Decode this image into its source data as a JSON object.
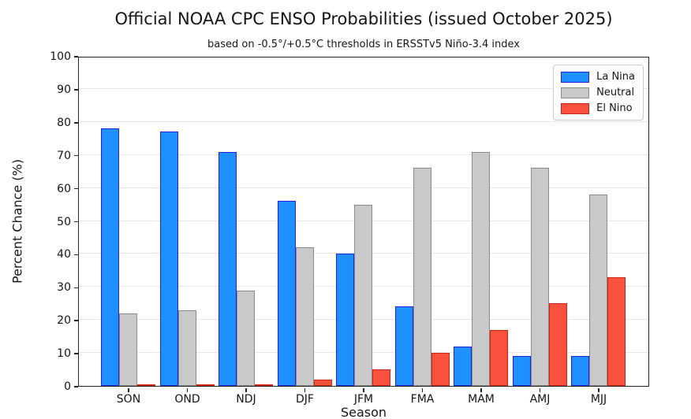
{
  "title": "Official NOAA CPC ENSO Probabilities (issued October 2025)",
  "subtitle": "based on -0.5°/+0.5°C thresholds in ERSSTv5 Niño-3.4 index",
  "chart_data": {
    "type": "bar",
    "title": "Official NOAA CPC ENSO Probabilities (issued October 2025)",
    "subtitle": "based on -0.5°/+0.5°C thresholds in ERSSTv5 Niño-3.4 index",
    "xlabel": "Season",
    "ylabel": "Percent Chance (%)",
    "ylim": [
      0,
      100
    ],
    "ytick_step": 10,
    "grid": "horizontal",
    "legend_position": "upper right",
    "categories": [
      "SON",
      "OND",
      "NDJ",
      "DJF",
      "JFM",
      "FMA",
      "MAM",
      "AMJ",
      "MJJ"
    ],
    "series": [
      {
        "name": "La Nina",
        "fill": "#1E90FF",
        "edge": "#2222DC",
        "values": [
          78,
          77,
          71,
          56,
          40,
          24,
          12,
          9,
          9
        ]
      },
      {
        "name": "Neutral",
        "fill": "#C9C9C9",
        "edge": "#898989",
        "values": [
          22,
          23,
          29,
          42,
          55,
          66,
          71,
          66,
          58
        ]
      },
      {
        "name": "El Nino",
        "fill": "#F9513D",
        "edge": "#CC2414",
        "values": [
          0,
          0,
          0,
          2,
          5,
          10,
          17,
          25,
          33
        ]
      }
    ]
  }
}
